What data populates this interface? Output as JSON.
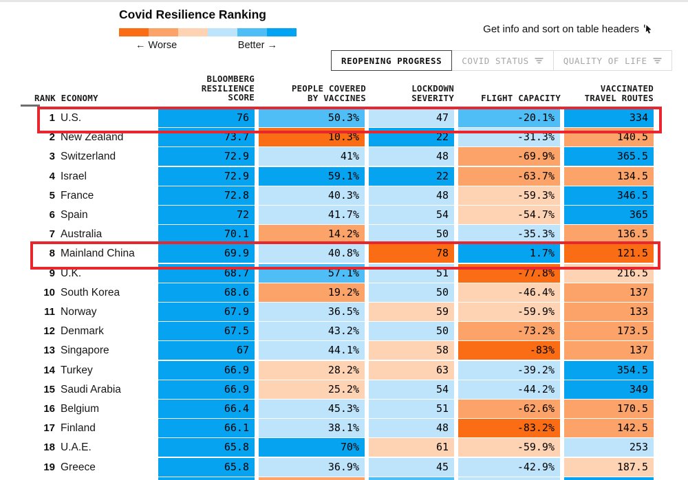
{
  "legend": {
    "title": "Covid Resilience Ranking",
    "worse_label": "← Worse",
    "better_label": "Better →",
    "scale_colors": [
      "#fb6d14",
      "#fba368",
      "#fdd3b4",
      "#bee4fb",
      "#4fbef7",
      "#01a3f2"
    ]
  },
  "info_note": {
    "text": "Get info and sort on table headers",
    "icon": "tap-cursor-icon"
  },
  "tabs": [
    {
      "label": "REOPENING PROGRESS",
      "active": true
    },
    {
      "label": "COVID STATUS",
      "active": false
    },
    {
      "label": "QUALITY OF LIFE",
      "active": false
    }
  ],
  "table": {
    "headers": {
      "rank_economy": "RANK ECONOMY",
      "score": "BLOOMBERG\nRESILIENCE\nSCORE",
      "vaccines": "PEOPLE COVERED\nBY VACCINES",
      "lockdown": "LOCKDOWN\nSEVERITY",
      "flight": "FLIGHT CAPACITY",
      "routes": "VACCINATED\nTRAVEL ROUTES"
    },
    "palette": {
      "o3": "#fb6d14",
      "o2": "#fba368",
      "o1": "#fdd3b4",
      "b1": "#bee4fb",
      "b2": "#4fbef7",
      "b3": "#06a3f1"
    },
    "rows": [
      {
        "rank": "1",
        "economy": "U.S.",
        "cells": [
          {
            "v": "76",
            "c": "b3"
          },
          {
            "v": "50.3%",
            "c": "b2"
          },
          {
            "v": "47",
            "c": "b1"
          },
          {
            "v": "-20.1%",
            "c": "b2"
          },
          {
            "v": "334",
            "c": "b3"
          }
        ]
      },
      {
        "rank": "2",
        "economy": "New Zealand",
        "cells": [
          {
            "v": "73.7",
            "c": "b3"
          },
          {
            "v": "10.3%",
            "c": "o3"
          },
          {
            "v": "22",
            "c": "b3"
          },
          {
            "v": "-31.3%",
            "c": "b1"
          },
          {
            "v": "140.5",
            "c": "o2"
          }
        ]
      },
      {
        "rank": "3",
        "economy": "Switzerland",
        "cells": [
          {
            "v": "72.9",
            "c": "b3"
          },
          {
            "v": "41%",
            "c": "b1"
          },
          {
            "v": "48",
            "c": "b1"
          },
          {
            "v": "-69.9%",
            "c": "o2"
          },
          {
            "v": "365.5",
            "c": "b3"
          }
        ]
      },
      {
        "rank": "4",
        "economy": "Israel",
        "cells": [
          {
            "v": "72.9",
            "c": "b3"
          },
          {
            "v": "59.1%",
            "c": "b3"
          },
          {
            "v": "22",
            "c": "b3"
          },
          {
            "v": "-63.7%",
            "c": "o2"
          },
          {
            "v": "134.5",
            "c": "o2"
          }
        ]
      },
      {
        "rank": "5",
        "economy": "France",
        "cells": [
          {
            "v": "72.8",
            "c": "b3"
          },
          {
            "v": "40.3%",
            "c": "b1"
          },
          {
            "v": "48",
            "c": "b1"
          },
          {
            "v": "-59.3%",
            "c": "o1"
          },
          {
            "v": "346.5",
            "c": "b3"
          }
        ]
      },
      {
        "rank": "6",
        "economy": "Spain",
        "cells": [
          {
            "v": "72",
            "c": "b3"
          },
          {
            "v": "41.7%",
            "c": "b1"
          },
          {
            "v": "54",
            "c": "b1"
          },
          {
            "v": "-54.7%",
            "c": "o1"
          },
          {
            "v": "365",
            "c": "b3"
          }
        ]
      },
      {
        "rank": "7",
        "economy": "Australia",
        "cells": [
          {
            "v": "70.1",
            "c": "b3"
          },
          {
            "v": "14.2%",
            "c": "o2"
          },
          {
            "v": "50",
            "c": "b1"
          },
          {
            "v": "-35.3%",
            "c": "b1"
          },
          {
            "v": "136.5",
            "c": "o2"
          }
        ]
      },
      {
        "rank": "8",
        "economy": "Mainland China",
        "cells": [
          {
            "v": "69.9",
            "c": "b3"
          },
          {
            "v": "40.8%",
            "c": "b1"
          },
          {
            "v": "78",
            "c": "o3"
          },
          {
            "v": "1.7%",
            "c": "b3"
          },
          {
            "v": "121.5",
            "c": "o3"
          }
        ]
      },
      {
        "rank": "9",
        "economy": "U.K.",
        "cells": [
          {
            "v": "68.7",
            "c": "b3"
          },
          {
            "v": "57.1%",
            "c": "b2"
          },
          {
            "v": "51",
            "c": "b1"
          },
          {
            "v": "-77.8%",
            "c": "o3"
          },
          {
            "v": "216.5",
            "c": "o1"
          }
        ]
      },
      {
        "rank": "10",
        "economy": "South Korea",
        "cells": [
          {
            "v": "68.6",
            "c": "b3"
          },
          {
            "v": "19.2%",
            "c": "o2"
          },
          {
            "v": "50",
            "c": "b1"
          },
          {
            "v": "-46.4%",
            "c": "o1"
          },
          {
            "v": "137",
            "c": "o2"
          }
        ]
      },
      {
        "rank": "11",
        "economy": "Norway",
        "cells": [
          {
            "v": "67.9",
            "c": "b3"
          },
          {
            "v": "36.5%",
            "c": "b1"
          },
          {
            "v": "59",
            "c": "o1"
          },
          {
            "v": "-59.9%",
            "c": "o1"
          },
          {
            "v": "133",
            "c": "o2"
          }
        ]
      },
      {
        "rank": "12",
        "economy": "Denmark",
        "cells": [
          {
            "v": "67.5",
            "c": "b3"
          },
          {
            "v": "43.2%",
            "c": "b1"
          },
          {
            "v": "50",
            "c": "b1"
          },
          {
            "v": "-73.2%",
            "c": "o2"
          },
          {
            "v": "173.5",
            "c": "o2"
          }
        ]
      },
      {
        "rank": "13",
        "economy": "Singapore",
        "cells": [
          {
            "v": "67",
            "c": "b3"
          },
          {
            "v": "44.1%",
            "c": "b1"
          },
          {
            "v": "58",
            "c": "o1"
          },
          {
            "v": "-83%",
            "c": "o3"
          },
          {
            "v": "137",
            "c": "o2"
          }
        ]
      },
      {
        "rank": "14",
        "economy": "Turkey",
        "cells": [
          {
            "v": "66.9",
            "c": "b3"
          },
          {
            "v": "28.2%",
            "c": "o1"
          },
          {
            "v": "63",
            "c": "o1"
          },
          {
            "v": "-39.2%",
            "c": "b1"
          },
          {
            "v": "354.5",
            "c": "b3"
          }
        ]
      },
      {
        "rank": "15",
        "economy": "Saudi Arabia",
        "cells": [
          {
            "v": "66.9",
            "c": "b3"
          },
          {
            "v": "25.2%",
            "c": "o1"
          },
          {
            "v": "54",
            "c": "b1"
          },
          {
            "v": "-44.2%",
            "c": "b1"
          },
          {
            "v": "349",
            "c": "b3"
          }
        ]
      },
      {
        "rank": "16",
        "economy": "Belgium",
        "cells": [
          {
            "v": "66.4",
            "c": "b3"
          },
          {
            "v": "45.3%",
            "c": "b1"
          },
          {
            "v": "51",
            "c": "b1"
          },
          {
            "v": "-62.6%",
            "c": "o2"
          },
          {
            "v": "170.5",
            "c": "o2"
          }
        ]
      },
      {
        "rank": "17",
        "economy": "Finland",
        "cells": [
          {
            "v": "66.1",
            "c": "b3"
          },
          {
            "v": "38.1%",
            "c": "b1"
          },
          {
            "v": "48",
            "c": "b1"
          },
          {
            "v": "-83.2%",
            "c": "o3"
          },
          {
            "v": "142.5",
            "c": "o2"
          }
        ]
      },
      {
        "rank": "18",
        "economy": "U.A.E.",
        "cells": [
          {
            "v": "65.8",
            "c": "b3"
          },
          {
            "v": "70%",
            "c": "b3"
          },
          {
            "v": "61",
            "c": "o1"
          },
          {
            "v": "-59.9%",
            "c": "o1"
          },
          {
            "v": "253",
            "c": "b1"
          }
        ]
      },
      {
        "rank": "19",
        "economy": "Greece",
        "cells": [
          {
            "v": "65.8",
            "c": "b3"
          },
          {
            "v": "36.9%",
            "c": "b1"
          },
          {
            "v": "45",
            "c": "b1"
          },
          {
            "v": "-42.9%",
            "c": "b1"
          },
          {
            "v": "187.5",
            "c": "o1"
          }
        ]
      }
    ],
    "partial_row_colors": [
      "b3",
      "o2",
      "b2",
      "b1",
      "b3"
    ]
  },
  "annotations": {
    "highlight_color": "#e8262d",
    "highlighted_ranks": [
      "1",
      "8"
    ]
  }
}
